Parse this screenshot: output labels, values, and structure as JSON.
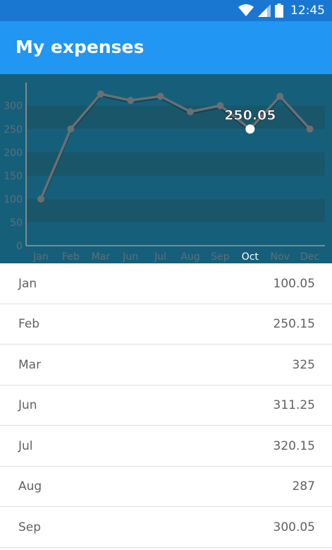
{
  "status_bar": {
    "time": "12:45",
    "icons": [
      "wifi-icon",
      "cell-signal-icon",
      "battery-icon"
    ]
  },
  "app_bar": {
    "title": "My expenses",
    "color": "#2196f3"
  },
  "chart_data": {
    "type": "line",
    "categories": [
      "Jan",
      "Feb",
      "Mar",
      "Jun",
      "Jul",
      "Aug",
      "Sep",
      "Oct",
      "Nov",
      "Dec"
    ],
    "values": [
      100.05,
      250.15,
      325,
      311.25,
      320.15,
      287,
      300.05,
      250.05,
      320,
      250
    ],
    "yticks": [
      "0",
      "50",
      "100",
      "150",
      "200",
      "250",
      "300"
    ],
    "ylim": [
      0,
      330
    ],
    "selected_index": 7,
    "selected_label": "250.05",
    "grid": true,
    "colors": {
      "background": "#165f7a",
      "band": "#1a566a",
      "line": "#6b6f72",
      "selected": "#ffffff"
    }
  },
  "expenses": [
    {
      "month": "Jan",
      "amount": "100.05"
    },
    {
      "month": "Feb",
      "amount": "250.15"
    },
    {
      "month": "Mar",
      "amount": "325"
    },
    {
      "month": "Jun",
      "amount": "311.25"
    },
    {
      "month": "Jul",
      "amount": "320.15"
    },
    {
      "month": "Aug",
      "amount": "287"
    },
    {
      "month": "Sep",
      "amount": "300.05"
    }
  ]
}
